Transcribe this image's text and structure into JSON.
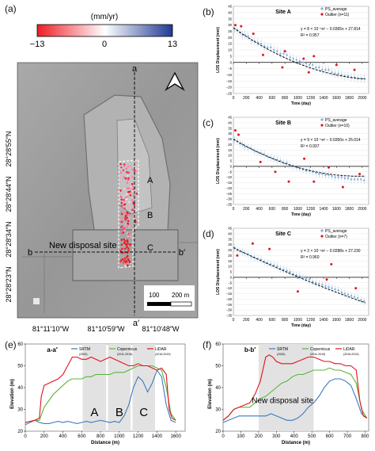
{
  "panel_labels": [
    "(a)",
    "(b)",
    "(c)",
    "(d)",
    "(e)",
    "(f)"
  ],
  "map": {
    "colorbar_unit": "(mm/yr)",
    "colorbar_ticks": [
      "−13",
      "0",
      "13"
    ],
    "lat_labels": [
      "28°28′55″N",
      "28°28′44″N",
      "28°28′34″N",
      "28°28′23″N"
    ],
    "lon_labels": [
      "81°11′10″W",
      "81°10′59″W",
      "81°10′48″W"
    ],
    "profile_a": "a",
    "profile_a_end": "a′",
    "profile_b": "b",
    "profile_b_end": "b′",
    "site_labels": [
      "A",
      "B",
      "C"
    ],
    "site_name": "New disposal site",
    "scalebar_labels": [
      "100",
      "200 m"
    ],
    "colors": {
      "neg": "#ee1c25",
      "zero": "#ffffff",
      "pos": "#1f3a93",
      "hillshade": "#9c9c9c"
    }
  },
  "chart_data": [
    {
      "type": "scatter",
      "title": "Site A",
      "xlabel": "Time (day)",
      "ylabel": "LOS Displacement (mm)",
      "xlim": [
        0,
        2100
      ],
      "ylim": [
        -25,
        45
      ],
      "xticks": [
        0,
        200,
        400,
        600,
        800,
        1000,
        1200,
        1400,
        1600,
        1800,
        2000
      ],
      "yticks": [
        45,
        40,
        35,
        30,
        25,
        20,
        15,
        10,
        5,
        0,
        -5,
        -10,
        -15,
        -20,
        -25
      ],
      "legend": [
        "PS_average",
        "Outlier (n=11)"
      ],
      "legend_position": "top-right",
      "equation": "y = 8 × 10⁻⁶x² − 0.0365x + 27.814",
      "r2": "R² = 0.957",
      "fit": {
        "a": 8e-06,
        "b": -0.0365,
        "c": 27.814
      },
      "series": [
        {
          "name": "PS_average",
          "x": [
            20,
            60,
            100,
            140,
            180,
            230,
            280,
            330,
            380,
            430,
            480,
            530,
            580,
            630,
            680,
            730,
            780,
            830,
            880,
            930,
            980,
            1030,
            1080,
            1130,
            1180,
            1230,
            1280,
            1330,
            1380,
            1430,
            1480,
            1530,
            1580,
            1630,
            1680,
            1730,
            1780,
            1830,
            1880,
            1930,
            1980,
            2030
          ],
          "y": [
            27,
            26,
            24,
            22,
            22,
            21,
            18,
            17,
            16,
            15,
            13,
            12,
            12,
            10,
            9,
            7,
            7,
            6,
            4,
            3,
            2,
            1,
            0,
            -1,
            -2,
            -2,
            -4,
            -4,
            -6,
            -6,
            -6,
            -8,
            -9,
            -9,
            -10,
            -11,
            -11,
            -12,
            -12,
            -13,
            -13,
            -13
          ]
        },
        {
          "name": "Outlier",
          "x": [
            30,
            120,
            310,
            460,
            760,
            800,
            1090,
            1170,
            1250,
            1600,
            1880
          ],
          "y": [
            30,
            29,
            23,
            6,
            -4,
            9,
            3,
            -8,
            5,
            -2,
            -6
          ]
        }
      ]
    },
    {
      "type": "scatter",
      "title": "Site B",
      "xlabel": "Time (day)",
      "ylabel": "LOS Displacement (mm)",
      "xlim": [
        0,
        2100
      ],
      "ylim": [
        -35,
        45
      ],
      "xticks": [
        0,
        200,
        400,
        600,
        800,
        1000,
        1200,
        1400,
        1600,
        1800,
        2000
      ],
      "yticks": [
        45,
        40,
        35,
        30,
        25,
        20,
        15,
        10,
        5,
        0,
        -5,
        -10,
        -15,
        -20,
        -25,
        -30,
        -35
      ],
      "legend": [
        "PS_average",
        "Outlier (n=10)"
      ],
      "legend_position": "top-right",
      "equation": "y = 9 × 10⁻⁶x² − 0.0350x + 25.014",
      "r2": "R² = 0.937",
      "fit": {
        "a": 9e-06,
        "b": -0.035,
        "c": 25.014
      },
      "series": [
        {
          "name": "PS_average",
          "x": [
            20,
            60,
            100,
            140,
            180,
            230,
            280,
            330,
            380,
            430,
            480,
            530,
            580,
            630,
            680,
            730,
            780,
            830,
            880,
            930,
            980,
            1030,
            1080,
            1130,
            1180,
            1230,
            1280,
            1330,
            1380,
            1430,
            1480,
            1530,
            1580,
            1630,
            1680,
            1730,
            1780,
            1830,
            1880,
            1930,
            1980,
            2030
          ],
          "y": [
            24,
            23,
            21,
            20,
            18,
            17,
            16,
            14,
            13,
            12,
            11,
            9,
            8,
            7,
            6,
            5,
            3,
            3,
            1,
            0,
            -1,
            -2,
            -3,
            -4,
            -4,
            -5,
            -6,
            -7,
            -7,
            -8,
            -8,
            -9,
            -10,
            -10,
            -10,
            -11,
            -11,
            -12,
            -12,
            -12,
            -12,
            -13
          ]
        },
        {
          "name": "Outlier",
          "x": [
            30,
            80,
            420,
            650,
            860,
            1100,
            1250,
            1480,
            1700,
            1960
          ],
          "y": [
            33,
            29,
            4,
            -5,
            -14,
            7,
            -14,
            -1,
            -19,
            -7
          ]
        }
      ]
    },
    {
      "type": "scatter",
      "title": "Site C",
      "xlabel": "Time (day)",
      "ylabel": "LOS Displacement (mm)",
      "xlim": [
        0,
        2100
      ],
      "ylim": [
        -35,
        45
      ],
      "xticks": [
        0,
        200,
        400,
        600,
        800,
        1000,
        1200,
        1400,
        1600,
        1800,
        2000
      ],
      "yticks": [
        45,
        40,
        35,
        30,
        25,
        20,
        15,
        10,
        5,
        0,
        -5,
        -10,
        -15,
        -20,
        -25,
        -30,
        -35
      ],
      "legend": [
        "PS_average",
        "Outlier (n=7)"
      ],
      "legend_position": "top-right",
      "equation": "y = 2 × 10⁻⁶x² − 0.0288x + 27.230",
      "r2": "R² = 0.960",
      "fit": {
        "a": 2e-06,
        "b": -0.0288,
        "c": 27.23
      },
      "series": [
        {
          "name": "PS_average",
          "x": [
            20,
            60,
            100,
            140,
            180,
            230,
            280,
            330,
            380,
            430,
            480,
            530,
            580,
            630,
            680,
            730,
            780,
            830,
            880,
            930,
            980,
            1030,
            1080,
            1130,
            1180,
            1230,
            1280,
            1330,
            1380,
            1430,
            1480,
            1530,
            1580,
            1630,
            1680,
            1730,
            1780,
            1830,
            1880,
            1930,
            1980,
            2030
          ],
          "y": [
            27,
            25,
            24,
            23,
            22,
            21,
            19,
            18,
            17,
            16,
            14,
            13,
            12,
            11,
            10,
            8,
            7,
            6,
            5,
            3,
            2,
            1,
            0,
            -1,
            -2,
            -4,
            -5,
            -6,
            -7,
            -8,
            -9,
            -10,
            -11,
            -12,
            -14,
            -15,
            -16,
            -17,
            -18,
            -19,
            -21,
            -22
          ]
        },
        {
          "name": "Outlier",
          "x": [
            60,
            300,
            560,
            1000,
            1450,
            1520,
            1900
          ],
          "y": [
            20,
            31,
            26,
            -13,
            -2,
            12,
            -10
          ]
        }
      ]
    },
    {
      "type": "line",
      "title": "a-a′",
      "xlabel": "Distance (m)",
      "ylabel": "Elevation (m)",
      "xlim": [
        0,
        1700
      ],
      "ylim": [
        20,
        60
      ],
      "xticks": [
        0,
        200,
        400,
        600,
        800,
        1000,
        1200,
        1400,
        1600
      ],
      "yticks": [
        20,
        30,
        40,
        50,
        60
      ],
      "legend_position": "top",
      "shaded": [
        [
          610,
          860
        ],
        [
          880,
          1120
        ],
        [
          1140,
          1380
        ]
      ],
      "region_labels": [
        {
          "text": "A",
          "x": 735,
          "y": 27
        },
        {
          "text": "B",
          "x": 1000,
          "y": 27
        },
        {
          "text": "C",
          "x": 1260,
          "y": 27
        }
      ],
      "series": [
        {
          "name": "SRTM",
          "years": "(2000)",
          "color": "#3f79bd",
          "x": [
            0,
            100,
            150,
            200,
            250,
            300,
            350,
            400,
            450,
            500,
            550,
            600,
            650,
            700,
            750,
            800,
            850,
            900,
            950,
            1000,
            1050,
            1100,
            1150,
            1200,
            1250,
            1300,
            1350,
            1400,
            1450,
            1500,
            1550,
            1600
          ],
          "y": [
            23,
            25,
            24,
            23.5,
            23.5,
            24,
            24.5,
            24,
            24.5,
            24,
            23.5,
            24,
            24.5,
            24,
            24.5,
            25,
            24.5,
            24,
            24.5,
            24,
            27,
            32,
            40,
            45,
            43,
            38,
            42,
            48,
            45,
            32,
            25,
            24
          ]
        },
        {
          "name": "Copernicus",
          "years": "(2011-2015)",
          "color": "#5bb43c",
          "x": [
            0,
            100,
            150,
            200,
            250,
            300,
            350,
            400,
            450,
            500,
            550,
            600,
            650,
            700,
            750,
            800,
            850,
            900,
            950,
            1000,
            1050,
            1100,
            1150,
            1200,
            1250,
            1300,
            1350,
            1400,
            1450,
            1500,
            1550,
            1600
          ],
          "y": [
            24,
            25,
            25,
            31,
            34,
            37,
            39,
            41,
            43,
            44,
            44,
            44,
            45,
            45,
            46,
            46,
            46,
            46,
            47,
            47,
            47,
            48,
            49,
            50,
            50,
            50,
            50,
            49,
            48,
            40,
            28,
            25
          ]
        },
        {
          "name": "LiDAR",
          "years": "(2016-2019)",
          "color": "#e2121e",
          "x": [
            0,
            100,
            150,
            170,
            200,
            250,
            300,
            350,
            400,
            450,
            500,
            550,
            600,
            650,
            700,
            750,
            800,
            850,
            900,
            950,
            1000,
            1050,
            1100,
            1150,
            1200,
            1250,
            1300,
            1350,
            1400,
            1450,
            1500,
            1530,
            1560,
            1600
          ],
          "y": [
            24,
            25,
            26,
            36,
            41,
            42,
            43,
            44,
            46,
            50,
            54,
            54,
            53,
            53,
            54,
            53,
            52,
            53,
            54,
            53,
            52,
            51,
            50,
            50,
            51,
            50,
            50,
            49,
            48,
            49,
            46,
            30,
            26,
            25
          ]
        }
      ]
    },
    {
      "type": "line",
      "title": "b-b′",
      "xlabel": "Distance (m)",
      "ylabel": "Elevation (m)",
      "xlim": [
        0,
        820
      ],
      "ylim": [
        20,
        60
      ],
      "xticks": [
        0,
        100,
        200,
        300,
        400,
        500,
        600,
        700,
        800
      ],
      "yticks": [
        20,
        30,
        40,
        50,
        60
      ],
      "legend_position": "top",
      "shaded": [
        [
          200,
          510
        ]
      ],
      "region_labels": [
        {
          "text": "New disposal site",
          "x": 335,
          "y": 33
        }
      ],
      "series": [
        {
          "name": "SRTM",
          "years": "(2000)",
          "color": "#3f79bd",
          "x": [
            0,
            30,
            60,
            90,
            120,
            150,
            180,
            210,
            240,
            270,
            300,
            330,
            360,
            390,
            420,
            450,
            480,
            510,
            540,
            570,
            600,
            630,
            660,
            690,
            720,
            750,
            780,
            810
          ],
          "y": [
            24,
            25,
            26,
            27,
            27,
            27,
            27,
            27,
            27,
            28,
            27,
            26,
            25,
            25,
            26,
            28,
            31,
            33,
            36,
            40,
            43,
            44,
            44,
            43,
            41,
            35,
            28,
            26
          ]
        },
        {
          "name": "Copernicus",
          "years": "(2011-2015)",
          "color": "#5bb43c",
          "x": [
            0,
            30,
            60,
            90,
            120,
            150,
            180,
            210,
            240,
            270,
            300,
            330,
            360,
            390,
            420,
            450,
            480,
            510,
            540,
            570,
            600,
            630,
            660,
            690,
            720,
            750,
            780,
            810
          ],
          "y": [
            25,
            27,
            30,
            31,
            31,
            31,
            33,
            35,
            36,
            38,
            40,
            42,
            43,
            45,
            46,
            46,
            47,
            48,
            48,
            48,
            49,
            48,
            48,
            47,
            46,
            42,
            30,
            26
          ]
        },
        {
          "name": "LiDAR",
          "years": "(2016-2019)",
          "color": "#e2121e",
          "x": [
            0,
            30,
            60,
            90,
            120,
            150,
            180,
            210,
            240,
            260,
            280,
            300,
            330,
            360,
            390,
            420,
            450,
            480,
            510,
            540,
            570,
            600,
            630,
            660,
            690,
            720,
            750,
            770,
            790,
            810
          ],
          "y": [
            25,
            27,
            30,
            31,
            32,
            33,
            37,
            43,
            54,
            55,
            54,
            52,
            51,
            51,
            51,
            52,
            53,
            54,
            54,
            53,
            52,
            52,
            51,
            51,
            50,
            50,
            48,
            34,
            27,
            26
          ]
        }
      ]
    }
  ]
}
